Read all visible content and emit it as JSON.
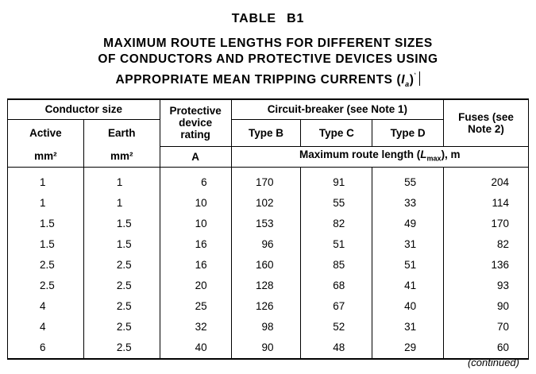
{
  "table_label": "TABLE B1",
  "heading": {
    "line1": "MAXIMUM ROUTE LENGTHS FOR DIFFERENT SIZES",
    "line2": "OF CONDUCTORS AND PROTECTIVE DEVICES USING",
    "line3": "APPROPRIATE MEAN TRIPPING CURRENTS (",
    "ia_symbol": "I",
    "ia_sub": "a",
    "line3_end": ")",
    "footnote_mark": "*"
  },
  "columns": {
    "conductor_size": "Conductor size",
    "active": "Active",
    "earth": "Earth",
    "protective_device": "Protective device rating",
    "circuit_breaker": "Circuit-breaker (see Note 1)",
    "type_b": "Type B",
    "type_c": "Type C",
    "type_d": "Type D",
    "fuses": "Fuses (see Note 2)",
    "unit_active": "mm²",
    "unit_earth": "mm²",
    "unit_protective": "A",
    "max_route_prefix": "Maximum route length (",
    "lmax_symbol": "L",
    "lmax_sub": "max",
    "max_route_suffix": "), m"
  },
  "rows": [
    {
      "active": "1",
      "earth": "1",
      "rating": "6",
      "b": "170",
      "c": "91",
      "d": "55",
      "fuse": "204"
    },
    {
      "active": "1",
      "earth": "1",
      "rating": "10",
      "b": "102",
      "c": "55",
      "d": "33",
      "fuse": "114"
    },
    {
      "active": "1.5",
      "earth": "1.5",
      "rating": "10",
      "b": "153",
      "c": "82",
      "d": "49",
      "fuse": "170"
    },
    {
      "active": "1.5",
      "earth": "1.5",
      "rating": "16",
      "b": "96",
      "c": "51",
      "d": "31",
      "fuse": "82"
    },
    {
      "active": "2.5",
      "earth": "2.5",
      "rating": "16",
      "b": "160",
      "c": "85",
      "d": "51",
      "fuse": "136"
    },
    {
      "active": "2.5",
      "earth": "2.5",
      "rating": "20",
      "b": "128",
      "c": "68",
      "d": "41",
      "fuse": "93"
    },
    {
      "active": "4",
      "earth": "2.5",
      "rating": "25",
      "b": "126",
      "c": "67",
      "d": "40",
      "fuse": "90"
    },
    {
      "active": "4",
      "earth": "2.5",
      "rating": "32",
      "b": "98",
      "c": "52",
      "d": "31",
      "fuse": "70"
    },
    {
      "active": "6",
      "earth": "2.5",
      "rating": "40",
      "b": "90",
      "c": "48",
      "d": "29",
      "fuse": "60"
    }
  ],
  "continued": "(continued)"
}
